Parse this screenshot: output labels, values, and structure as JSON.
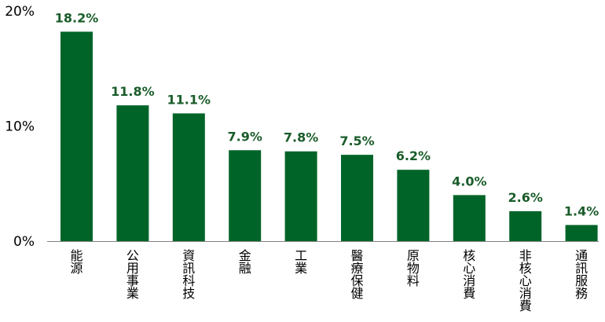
{
  "chart_data": {
    "type": "bar",
    "categories": [
      "能源",
      "公用事業",
      "資訊科技",
      "金融",
      "工業",
      "醫療保健",
      "原物料",
      "核心消費",
      "非核心消費",
      "通訊服務"
    ],
    "values": [
      18.2,
      11.8,
      11.1,
      7.9,
      7.8,
      7.5,
      6.2,
      4.0,
      2.6,
      1.4
    ],
    "data_labels": [
      "18.2%",
      "11.8%",
      "11.1%",
      "7.9%",
      "7.8%",
      "7.5%",
      "6.2%",
      "4.0%",
      "2.6%",
      "1.4%"
    ],
    "yticks": [
      0,
      10,
      20
    ],
    "ytick_labels": [
      "0%",
      "10%",
      "20%"
    ],
    "ylim": [
      0,
      20
    ],
    "title": "",
    "xlabel": "",
    "ylabel": "",
    "grid": false,
    "legend": "none",
    "colors": {
      "bar": "#006428",
      "data_label": "#1a5c2a",
      "axis": "#808080"
    }
  }
}
